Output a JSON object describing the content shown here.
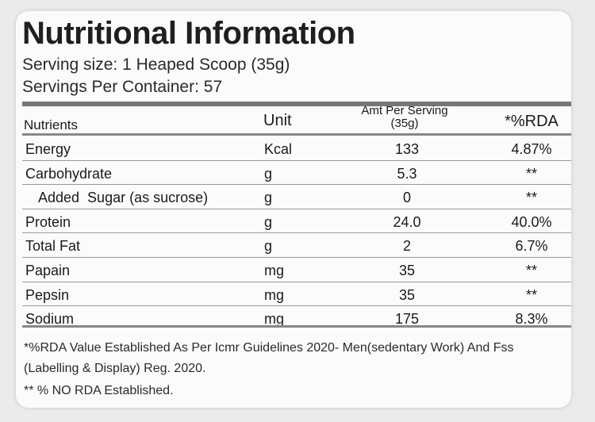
{
  "label": {
    "title": "Nutritional Information",
    "serving_size": "Serving size: 1 Heaped Scoop (35g)",
    "servings_per_container": "Servings Per Container: 57"
  },
  "table": {
    "headers": {
      "nutrients": "Nutrients",
      "unit": "Unit",
      "amount": "Amt Per Serving (35g)",
      "rda": "*%RDA"
    },
    "rows": [
      {
        "name": "Energy",
        "unit": "Kcal",
        "amount": "133",
        "rda": "4.87%"
      },
      {
        "name": "Carbohydrate",
        "unit": "g",
        "amount": "5.3",
        "rda": "**"
      },
      {
        "name": "Added  Sugar (as sucrose)",
        "unit": "g",
        "amount": "0",
        "rda": "**"
      },
      {
        "name": "Protein",
        "unit": "g",
        "amount": "24.0",
        "rda": "40.0%"
      },
      {
        "name": "Total Fat",
        "unit": "g",
        "amount": "2",
        "rda": "6.7%"
      },
      {
        "name": "Papain",
        "unit": "mg",
        "amount": "35",
        "rda": "**"
      },
      {
        "name": "Pepsin",
        "unit": "mg",
        "amount": "35",
        "rda": "**"
      },
      {
        "name": "Sodium",
        "unit": "mg",
        "amount": "175",
        "rda": "8.3%"
      }
    ]
  },
  "footnotes": {
    "line1": "*%RDA Value Established As Per Icmr Guidelines 2020- Men(sedentary Work) And Fss",
    "line2": "(Labelling & Display) Reg. 2020.",
    "line3": "** % NO RDA Established."
  }
}
